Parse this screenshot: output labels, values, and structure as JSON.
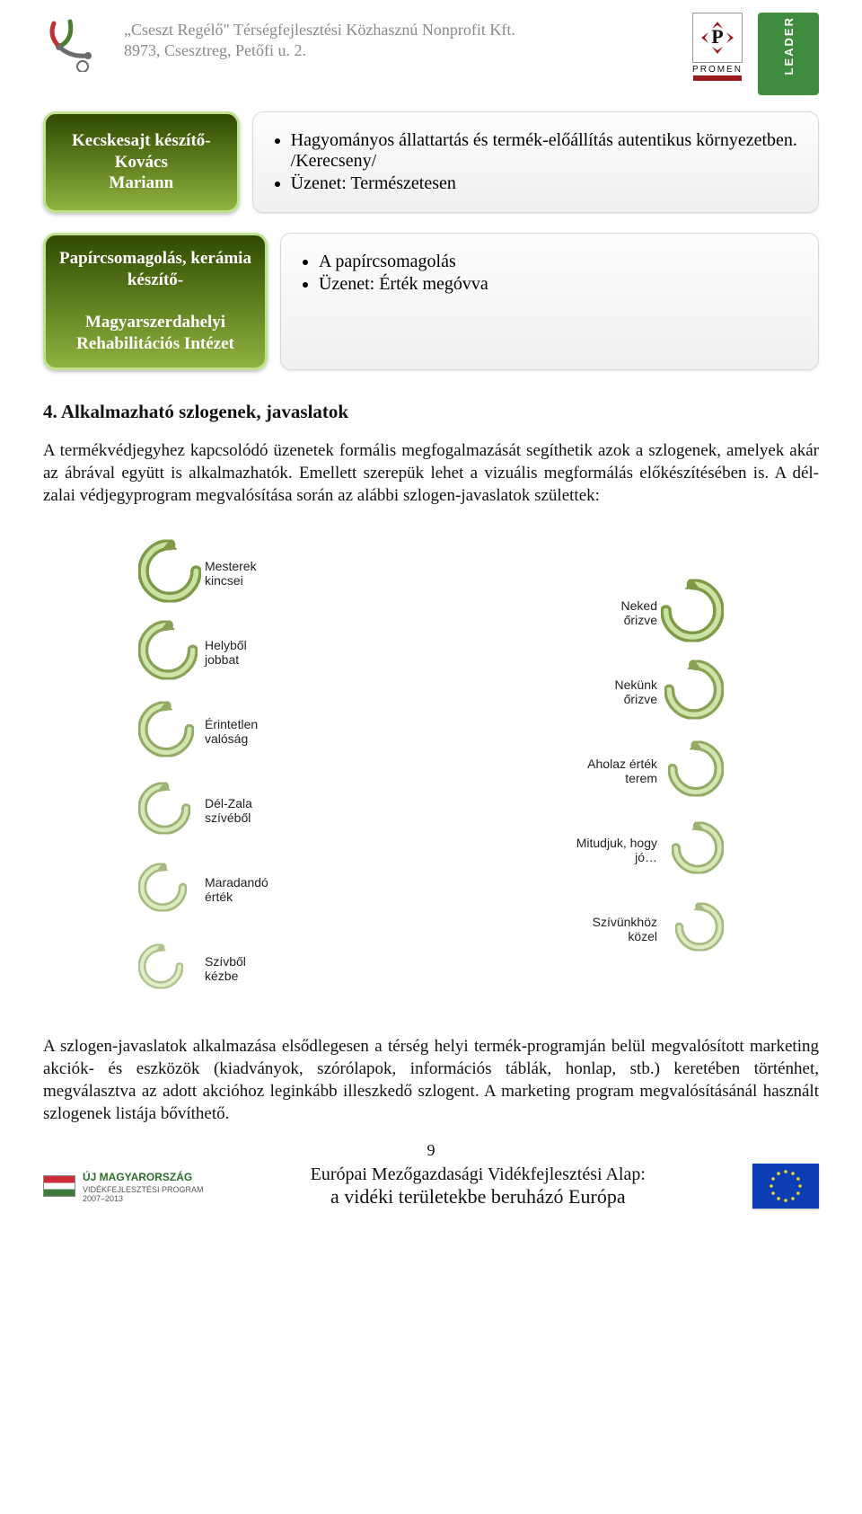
{
  "header": {
    "org_line1": "„Cseszt Regélő\" Térségfejlesztési Közhasznú Nonprofit Kft.",
    "org_line2": "8973, Csesztreg, Petőfi u. 2.",
    "promen_label": "PROMEN",
    "leader_label": "LEADER"
  },
  "colors": {
    "label_green_dark": "#2f4a00",
    "label_green_light": "#8fb23f",
    "label_border": "#bfe28e",
    "sidebar_leader": "#3f8c3f",
    "swirl_dark": "#7e9a47",
    "swirl_light": "#c9e3a2",
    "hu_red": "#cc2b37",
    "hu_green": "#3f7b3f",
    "eu_blue": "#0b3db5",
    "eu_gold": "#f7d22b"
  },
  "rows": [
    {
      "label_html": "<b>Kecskesajt készítő- Kovács<br>Mariann</b>",
      "bullets": [
        "Hagyományos állattartás és termék-előállítás autentikus környezetben. /Kerecseny/",
        "Üzenet: Természetesen"
      ]
    },
    {
      "label_html": "<b>Papírcsomagolás, kerámia készítő-</b><br><b>Magyarszerdahelyi Rehabilitációs Intézet</b>",
      "bullets": [
        "A papírcsomagolás",
        "Üzenet: Érték megóvva"
      ]
    }
  ],
  "section_title": "4.   Alkalmazható szlogenek, javaslatok",
  "para1": "A termékvédjegyhez kapcsolódó üzenetek formális megfogalmazását segíthetik azok a szlogenek, amelyek akár az ábrával együtt is alkalmazhatók. Emellett szerepük lehet a vizuális megformálás előkészítésében is. A dél-zalai védjegyprogram megvalósítása során az alábbi szlogen-javaslatok születtek:",
  "slogans_left": [
    "Mesterek kincsei",
    "Helyből jobbat",
    "Érintetlen valóság",
    "Dél-Zala szívéből",
    "Maradandó érték",
    "Szívből kézbe"
  ],
  "slogans_right": [
    "Neked őrizve",
    "Nekünk őrizve",
    "Ahol az érték terem",
    "Mi tudjuk, hogy jó…",
    "Szívünkhöz közel"
  ],
  "para2": "A szlogen-javaslatok alkalmazása elsődlegesen a térség helyi termék-programján belül megvalósított marketing akciók- és eszközök (kiadványok, szórólapok, információs táblák, honlap, stb.) keretében történhet, megválasztva az adott akcióhoz leginkább illeszkedő szlogent. A marketing program megvalósításánál használt szlogenek listája bővíthető.",
  "page_number": "9",
  "footer": {
    "um_title": "ÚJ MAGYARORSZÁG",
    "um_sub": "VIDÉKFEJLESZTÉSI PROGRAM",
    "um_years": "2007–2013",
    "line1": "Európai Mezőgazdasági Vidékfejlesztési Alap:",
    "line2": "a vidéki területekbe beruházó Európa"
  }
}
